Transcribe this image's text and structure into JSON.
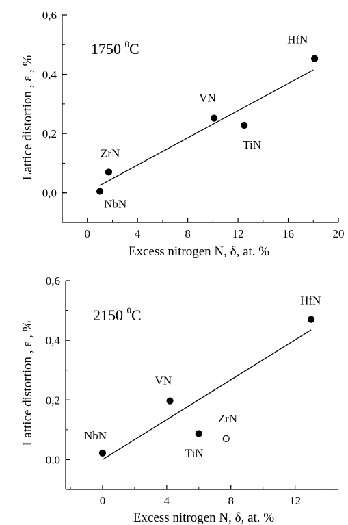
{
  "chart_data": [
    {
      "type": "scatter",
      "panel": "top",
      "annotation": {
        "value": "1750 ",
        "sup": "0",
        "unit": "C"
      },
      "xlabel": "Excess nitrogen N, δ, at. %",
      "ylabel": "Lattice distortion , ε , %",
      "xlim": [
        -2,
        20
      ],
      "ylim": [
        -0.1,
        0.6
      ],
      "xticks": [
        {
          "v": 0,
          "label": "0"
        },
        {
          "v": 4,
          "label": "4"
        },
        {
          "v": 8,
          "label": "8"
        },
        {
          "v": 12,
          "label": "12"
        },
        {
          "v": 16,
          "label": "16"
        },
        {
          "v": 20,
          "label": "20"
        }
      ],
      "yticks": [
        {
          "v": 0.0,
          "label": "0,0"
        },
        {
          "v": 0.2,
          "label": "0,2"
        },
        {
          "v": 0.4,
          "label": "0,4"
        },
        {
          "v": 0.6,
          "label": "0,6"
        }
      ],
      "points": [
        {
          "label": "NbN",
          "x": 1.0,
          "y": 0.005,
          "filled": true
        },
        {
          "label": "ZrN",
          "x": 1.7,
          "y": 0.07,
          "filled": true
        },
        {
          "label": "VN",
          "x": 10.1,
          "y": 0.252,
          "filled": true
        },
        {
          "label": "TiN",
          "x": 12.5,
          "y": 0.228,
          "filled": true
        },
        {
          "label": "HfN",
          "x": 18.1,
          "y": 0.453,
          "filled": true
        }
      ],
      "fit_line": {
        "x": [
          1.0,
          18.0
        ],
        "y": [
          0.025,
          0.415
        ]
      }
    },
    {
      "type": "scatter",
      "panel": "bottom",
      "annotation": {
        "value": "2150 ",
        "sup": "0",
        "unit": "C"
      },
      "xlabel": "Excess nitrogen N, δ, at. %",
      "ylabel": "Lattice distortion , ε , %",
      "xlim": [
        -2.3,
        14.7
      ],
      "ylim": [
        -0.1,
        0.6
      ],
      "xticks": [
        {
          "v": 0,
          "label": "0"
        },
        {
          "v": 4,
          "label": "4"
        },
        {
          "v": 8,
          "label": "8"
        },
        {
          "v": 12,
          "label": "12"
        }
      ],
      "yticks": [
        {
          "v": 0.0,
          "label": "0,0"
        },
        {
          "v": 0.2,
          "label": "0,2"
        },
        {
          "v": 0.4,
          "label": "0,4"
        },
        {
          "v": 0.6,
          "label": "0,6"
        }
      ],
      "points": [
        {
          "label": "NbN",
          "x": 0.0,
          "y": 0.022,
          "filled": true
        },
        {
          "label": "VN",
          "x": 4.2,
          "y": 0.197,
          "filled": true
        },
        {
          "label": "TiN",
          "x": 6.0,
          "y": 0.087,
          "filled": true
        },
        {
          "label": "ZrN",
          "x": 7.7,
          "y": 0.07,
          "filled": false
        },
        {
          "label": "HfN",
          "x": 13.0,
          "y": 0.47,
          "filled": true
        }
      ],
      "fit_line": {
        "x": [
          0.0,
          13.0
        ],
        "y": [
          0.0,
          0.435
        ]
      }
    }
  ]
}
